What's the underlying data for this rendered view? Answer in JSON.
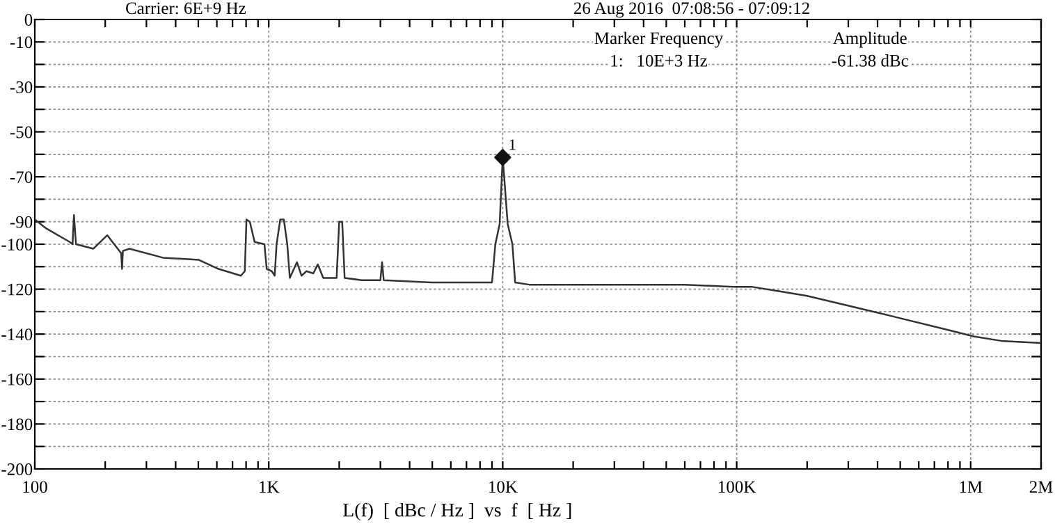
{
  "chart_data": {
    "type": "line",
    "title": "Carrier: 6E+9 Hz",
    "subtitle": "26 Aug 2016  07:08:56 - 07:09:12",
    "xlabel": "L(f)  [ dBc / Hz ]  vs  f  [ Hz ]",
    "annotations": [
      "Marker Frequency",
      "Amplitude",
      "1:   10E+3 Hz",
      "-61.38 dBc",
      {
        "text": "1",
        "x": 10000,
        "y": -61.38
      }
    ],
    "log": "x",
    "grid": true,
    "marker": "none",
    "line_style": "solid",
    "xlim": [
      100,
      2000000
    ],
    "xticks": [
      {
        "value": 100,
        "label": "100"
      },
      {
        "value": 200,
        "label": null
      },
      {
        "value": 300,
        "label": null
      },
      {
        "value": 400,
        "label": null
      },
      {
        "value": 500,
        "label": null
      },
      {
        "value": 600,
        "label": null
      },
      {
        "value": 700,
        "label": null
      },
      {
        "value": 800,
        "label": null
      },
      {
        "value": 900,
        "label": null
      },
      {
        "value": 1000,
        "label": "1K"
      },
      {
        "value": 2000,
        "label": null
      },
      {
        "value": 3000,
        "label": null
      },
      {
        "value": 4000,
        "label": null
      },
      {
        "value": 5000,
        "label": null
      },
      {
        "value": 6000,
        "label": null
      },
      {
        "value": 7000,
        "label": null
      },
      {
        "value": 8000,
        "label": null
      },
      {
        "value": 9000,
        "label": null
      },
      {
        "value": 10000,
        "label": "10K"
      },
      {
        "value": 20000,
        "label": null
      },
      {
        "value": 30000,
        "label": null
      },
      {
        "value": 40000,
        "label": null
      },
      {
        "value": 50000,
        "label": null
      },
      {
        "value": 60000,
        "label": null
      },
      {
        "value": 70000,
        "label": null
      },
      {
        "value": 80000,
        "label": null
      },
      {
        "value": 90000,
        "label": null
      },
      {
        "value": 100000,
        "label": "100K"
      },
      {
        "value": 200000,
        "label": null
      },
      {
        "value": 300000,
        "label": null
      },
      {
        "value": 400000,
        "label": null
      },
      {
        "value": 500000,
        "label": null
      },
      {
        "value": 600000,
        "label": null
      },
      {
        "value": 700000,
        "label": null
      },
      {
        "value": 800000,
        "label": null
      },
      {
        "value": 900000,
        "label": null
      },
      {
        "value": 1000000,
        "label": "1M"
      },
      {
        "value": 2000000,
        "label": "2M"
      }
    ],
    "ylim": [
      -200,
      0
    ],
    "yticks": [
      0,
      -10,
      {
        "value": -20,
        "label": null
      },
      -30,
      {
        "value": -40,
        "label": null
      },
      -50,
      {
        "value": -60,
        "label": null
      },
      -70,
      {
        "value": -80,
        "label": null
      },
      -90,
      -100,
      {
        "value": -110,
        "label": null
      },
      -120,
      {
        "value": -130,
        "label": null
      },
      -140,
      {
        "value": -150,
        "label": null
      },
      -160,
      {
        "value": -170,
        "label": null
      },
      -180,
      {
        "value": -190,
        "label": null
      },
      -200
    ],
    "series": [
      {
        "color": "#333333",
        "x": [
          100,
          112,
          141,
          145,
          147,
          150,
          178,
          204,
          234,
          236,
          238,
          254,
          353,
          503,
          610,
          760,
          790,
          803,
          830,
          870,
          958,
          980,
          1030,
          1060,
          1080,
          1120,
          1160,
          1200,
          1230,
          1320,
          1380,
          1450,
          1550,
          1620,
          1710,
          1950,
          2000,
          2060,
          2110,
          2500,
          3000,
          3050,
          3100,
          5000,
          9000,
          9300,
          9700,
          10000,
          10500,
          11000,
          11300,
          13000,
          33500,
          60000,
          97000,
          117000,
          153000,
          200000,
          350000,
          460000,
          790000,
          1030000,
          1350000,
          2000000
        ],
        "values": [
          -89,
          -93,
          -99,
          -100,
          -87,
          -100,
          -102,
          -96,
          -104,
          -111,
          -103,
          -102,
          -106,
          -107,
          -111,
          -114,
          -112,
          -89,
          -90,
          -99,
          -100,
          -111,
          -112,
          -114,
          -100,
          -89,
          -89,
          -100,
          -115,
          -108,
          -114,
          -112,
          -113,
          -109,
          -115,
          -115,
          -90,
          -90,
          -115,
          -116,
          -116,
          -108,
          -116,
          -117,
          -117,
          -100,
          -91,
          -61.38,
          -91,
          -100,
          -117,
          -118,
          -118,
          -118,
          -119,
          -119,
          -121,
          -123,
          -129,
          -132,
          -138,
          -141,
          -143,
          -144
        ]
      },
      {
        "type": "scatter",
        "color": "#111111",
        "marker": "diamond",
        "x": [
          10000
        ],
        "values": [
          -61.38
        ]
      }
    ]
  }
}
